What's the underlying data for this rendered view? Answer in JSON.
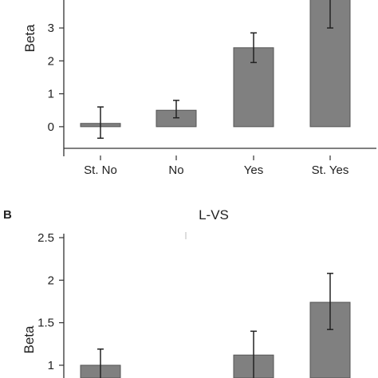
{
  "chart_data": [
    {
      "type": "bar",
      "title": "",
      "ylabel": "Beta",
      "xlabel": "",
      "categories": [
        "St. No",
        "No",
        "Yes",
        "St. Yes"
      ],
      "values": [
        0.1,
        0.5,
        2.4,
        4.0
      ],
      "error_low": [
        -0.35,
        0.27,
        1.95,
        3.0
      ],
      "error_high": [
        0.6,
        0.8,
        2.85,
        4.7
      ],
      "yticks": [
        "0",
        "1",
        "2",
        "3"
      ],
      "ylim": [
        -0.9,
        3.85
      ],
      "colors": {
        "bar": "#808080",
        "axis": "#333333"
      }
    },
    {
      "type": "bar",
      "panel_label": "B",
      "title": "L-VS",
      "ylabel": "Beta",
      "xlabel": "",
      "categories": [
        "",
        "",
        "",
        ""
      ],
      "values": [
        1.0,
        null,
        1.12,
        1.74
      ],
      "error_low": [
        0.8,
        null,
        0.83,
        1.42
      ],
      "error_high": [
        1.19,
        null,
        1.4,
        2.08
      ],
      "yticks": [
        "1",
        "1.5",
        "2",
        "2.5"
      ],
      "ylim": [
        0.85,
        2.5
      ],
      "colors": {
        "bar": "#808080",
        "axis": "#333333"
      }
    }
  ]
}
